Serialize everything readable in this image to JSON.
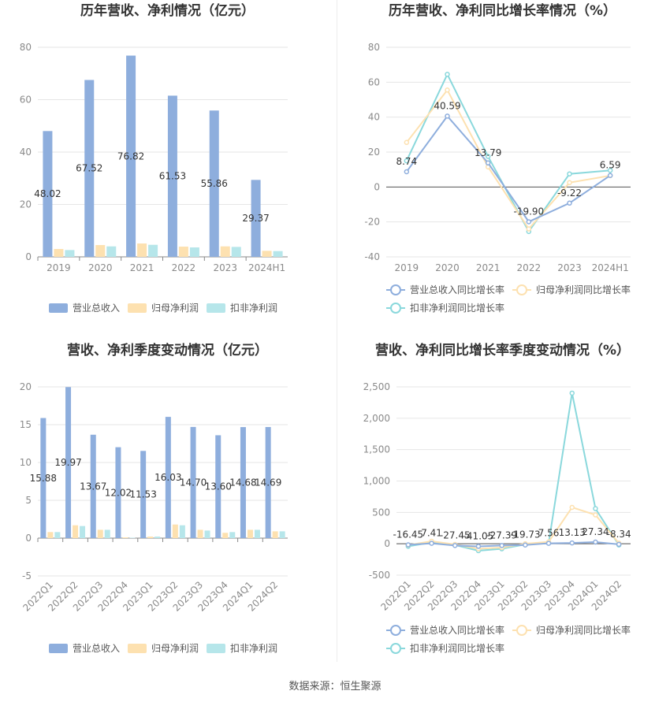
{
  "footer": "数据来源：恒生聚源",
  "colors": {
    "revenue": "#8eaedd",
    "parent": "#fde1b0",
    "deducted": "#b6e6ea",
    "revenue_line": "#8eaedd",
    "parent_line": "#fde1b0",
    "deducted_line": "#8ad8dc"
  },
  "chart_data": [
    {
      "type": "bar",
      "title": "历年营收、净利情况（亿元）",
      "categories": [
        "2019",
        "2020",
        "2021",
        "2022",
        "2023",
        "2024H1"
      ],
      "ylim": [
        0,
        80
      ],
      "yticks": [
        0,
        20,
        40,
        60,
        80
      ],
      "series": [
        {
          "name": "营业总收入",
          "values": [
            48.02,
            67.52,
            76.82,
            61.53,
            55.86,
            29.37
          ],
          "labels": [
            "48.02",
            "67.52",
            "76.82",
            "61.53",
            "55.86",
            "29.37"
          ]
        },
        {
          "name": "归母净利润",
          "values": [
            3.0,
            4.5,
            5.1,
            3.9,
            4.0,
            2.3
          ]
        },
        {
          "name": "扣非净利润",
          "values": [
            2.6,
            4.0,
            4.6,
            3.6,
            3.8,
            2.2
          ]
        }
      ],
      "legend": "bottom"
    },
    {
      "type": "line",
      "title": "历年营收、净利同比增长率情况（%）",
      "categories": [
        "2019",
        "2020",
        "2021",
        "2022",
        "2023",
        "2024H1"
      ],
      "ylim": [
        -40,
        80
      ],
      "yticks": [
        -40,
        -20,
        0,
        20,
        40,
        60,
        80
      ],
      "series": [
        {
          "name": "营业总收入同比增长率",
          "values": [
            8.74,
            40.59,
            13.79,
            -19.9,
            -9.22,
            6.59
          ],
          "labels": [
            "8.74",
            "40.59",
            "13.79",
            "-19.90",
            "-9.22",
            "6.59"
          ]
        },
        {
          "name": "归母净利润同比增长率",
          "values": [
            25.5,
            55.5,
            11.5,
            -24.0,
            2.5,
            6.5
          ]
        },
        {
          "name": "扣非净利润同比增长率",
          "values": [
            15.0,
            64.5,
            17.5,
            -25.5,
            7.5,
            9.5
          ]
        }
      ],
      "legend": "bottom"
    },
    {
      "type": "bar",
      "title": "营收、净利季度变动情况（亿元）",
      "categories": [
        "2022Q1",
        "2022Q2",
        "2022Q3",
        "2022Q4",
        "2023Q1",
        "2023Q2",
        "2023Q3",
        "2023Q4",
        "2024Q1",
        "2024Q2"
      ],
      "ylim": [
        -5,
        20
      ],
      "yticks": [
        -5,
        0,
        5,
        10,
        15,
        20
      ],
      "series": [
        {
          "name": "营业总收入",
          "values": [
            15.88,
            19.97,
            13.67,
            12.02,
            11.53,
            16.03,
            14.7,
            13.6,
            14.68,
            14.69
          ],
          "labels": [
            "15.88",
            "19.97",
            "13.67",
            "12.02",
            "11.53",
            "16.03",
            "14.70",
            "13.60",
            "14.68",
            "14.69"
          ]
        },
        {
          "name": "归母净利润",
          "values": [
            0.8,
            1.7,
            1.1,
            0.1,
            0.2,
            1.8,
            1.1,
            0.7,
            1.1,
            0.9
          ]
        },
        {
          "name": "扣非净利润",
          "values": [
            0.8,
            1.6,
            1.1,
            0.05,
            0.2,
            1.7,
            1.0,
            0.8,
            1.1,
            0.9
          ]
        }
      ],
      "legend": "bottom"
    },
    {
      "type": "line",
      "title": "营收、净利同比增长率季度变动情况（%）",
      "categories": [
        "2022Q1",
        "2022Q2",
        "2022Q3",
        "2022Q4",
        "2023Q1",
        "2023Q2",
        "2023Q3",
        "2023Q4",
        "2024Q1",
        "2024Q2"
      ],
      "ylim": [
        -500,
        2500
      ],
      "yticks": [
        -500,
        0,
        500,
        1000,
        1500,
        2000,
        2500
      ],
      "ytick_labels": [
        "-500",
        "0",
        "500",
        "1,000",
        "1,500",
        "2,000",
        "2,500"
      ],
      "series": [
        {
          "name": "营业总收入同比增长率",
          "values": [
            -16.45,
            7.41,
            -27.45,
            -41.05,
            -27.39,
            -19.73,
            7.56,
            13.13,
            27.34,
            -8.34
          ],
          "labels": [
            "-16.45",
            "7.41",
            "-27.45",
            "-41.05",
            "-27.39",
            "-19.73",
            "7.56",
            "13.13",
            "27.34",
            "-8.34"
          ]
        },
        {
          "name": "归母净利润同比增长率",
          "values": [
            -20,
            40,
            -10,
            -80,
            -60,
            0,
            30,
            580,
            460,
            10
          ]
        },
        {
          "name": "扣非净利润同比增长率",
          "values": [
            -40,
            20,
            -20,
            -110,
            -80,
            -10,
            10,
            2400,
            560,
            -20
          ]
        }
      ],
      "legend": "bottom"
    }
  ]
}
